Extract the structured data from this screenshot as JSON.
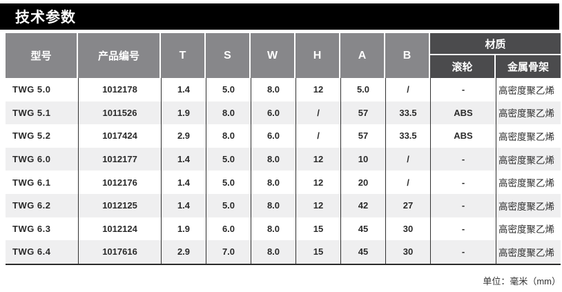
{
  "title": "技术参数",
  "unit_note": "单位：毫米（mm）",
  "colors": {
    "title_bg": "#000000",
    "header_cell": "#87878a",
    "header_material_group": "#4b4b4d",
    "row_alt": "#efeff0",
    "grid_line": "#2f2f2f",
    "text": "#2b2b2b"
  },
  "table": {
    "headers": {
      "model": "型号",
      "product_no": "产品编号",
      "t": "T",
      "s": "S",
      "w": "W",
      "h": "H",
      "a": "A",
      "b": "B",
      "material_group": "材质",
      "roller": "滚轮",
      "metal_frame": "金属骨架"
    },
    "rows": [
      {
        "model": "TWG 5.0",
        "product_no": "1012178",
        "t": "1.4",
        "s": "5.0",
        "w": "8.0",
        "h": "12",
        "a": "5.0",
        "b": "/",
        "roller": "-",
        "metal_frame": "高密度聚乙烯"
      },
      {
        "model": "TWG 5.1",
        "product_no": "1011526",
        "t": "1.9",
        "s": "8.0",
        "w": "6.0",
        "h": "/",
        "a": "57",
        "b": "33.5",
        "roller": "ABS",
        "metal_frame": "高密度聚乙烯"
      },
      {
        "model": "TWG 5.2",
        "product_no": "1017424",
        "t": "2.9",
        "s": "8.0",
        "w": "6.0",
        "h": "/",
        "a": "57",
        "b": "33.5",
        "roller": "ABS",
        "metal_frame": "高密度聚乙烯"
      },
      {
        "model": "TWG 6.0",
        "product_no": "1012177",
        "t": "1.4",
        "s": "5.0",
        "w": "8.0",
        "h": "12",
        "a": "10",
        "b": "/",
        "roller": "-",
        "metal_frame": "高密度聚乙烯"
      },
      {
        "model": "TWG 6.1",
        "product_no": "1012176",
        "t": "1.4",
        "s": "5.0",
        "w": "8.0",
        "h": "12",
        "a": "20",
        "b": "/",
        "roller": "-",
        "metal_frame": "高密度聚乙烯"
      },
      {
        "model": "TWG 6.2",
        "product_no": "1012125",
        "t": "1.4",
        "s": "5.0",
        "w": "8.0",
        "h": "12",
        "a": "42",
        "b": "27",
        "roller": "-",
        "metal_frame": "高密度聚乙烯"
      },
      {
        "model": "TWG 6.3",
        "product_no": "1012124",
        "t": "1.9",
        "s": "6.0",
        "w": "8.0",
        "h": "15",
        "a": "45",
        "b": "30",
        "roller": "-",
        "metal_frame": "高密度聚乙烯"
      },
      {
        "model": "TWG 6.4",
        "product_no": "1017616",
        "t": "2.9",
        "s": "7.0",
        "w": "8.0",
        "h": "15",
        "a": "45",
        "b": "30",
        "roller": "-",
        "metal_frame": "高密度聚乙烯"
      }
    ]
  }
}
